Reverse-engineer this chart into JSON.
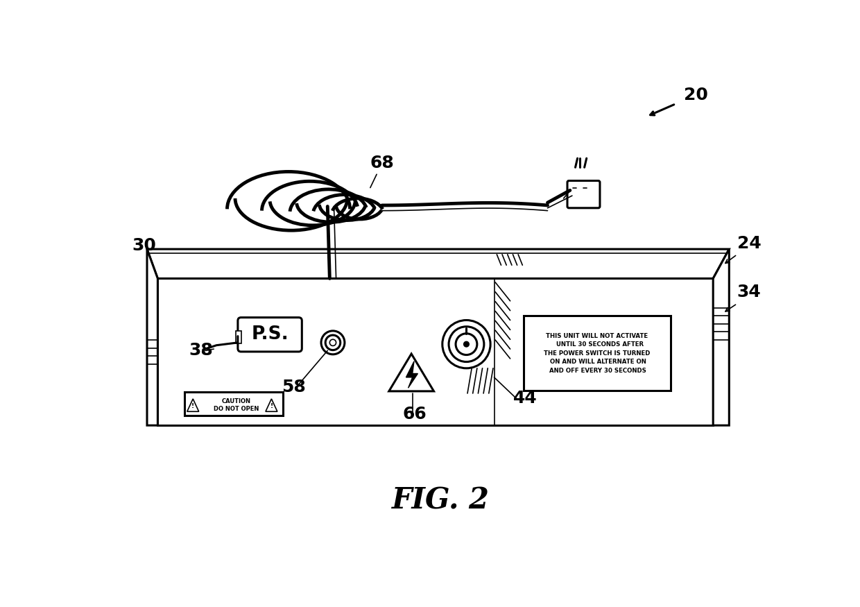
{
  "bg_color": "#ffffff",
  "line_color": "#000000",
  "fig_label": "FIG. 2",
  "warning_text": "THIS UNIT WILL NOT ACTIVATE\n   UNTIL 30 SECONDS AFTER\nTHE POWER SWITCH IS TURNED\n ON AND WILL ALTERNATE ON\n AND OFF EVERY 30 SECONDS",
  "caution_text": "CAUTION\nDO NOT OPEN",
  "ps_text": "P.S.",
  "lw_main": 2.2,
  "lw_thin": 1.2,
  "lw_cord": 3.5
}
